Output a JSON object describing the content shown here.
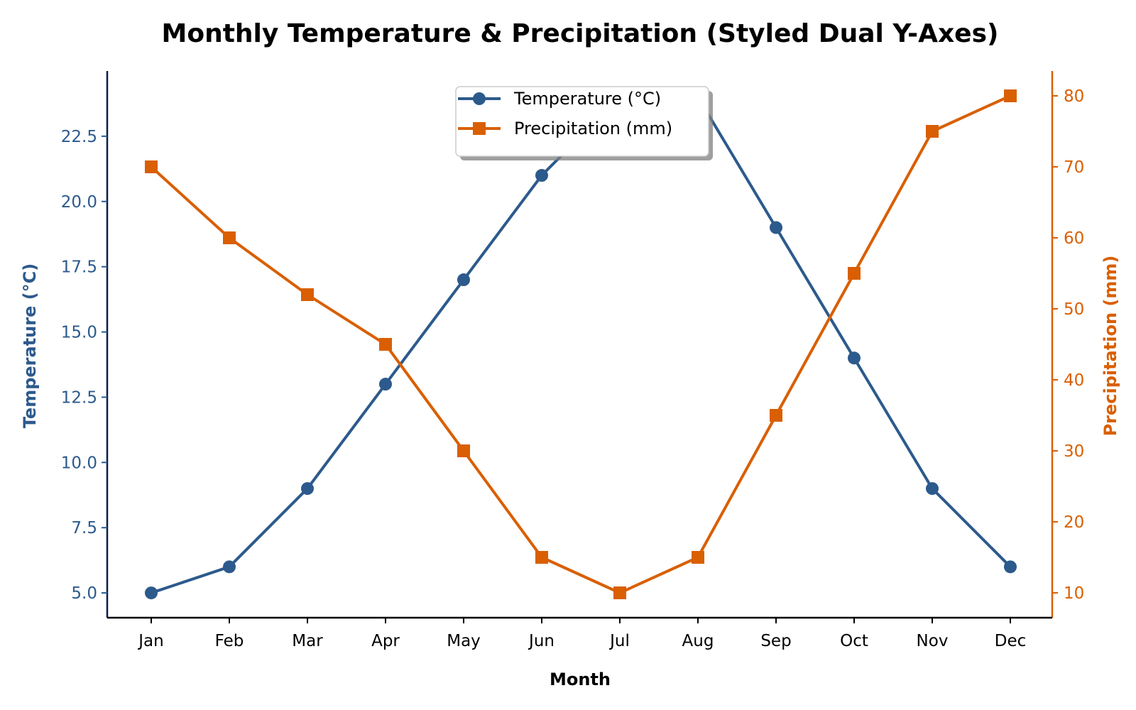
{
  "chart_data": {
    "type": "line",
    "title": "Monthly Temperature & Precipitation (Styled Dual Y-Axes)",
    "xlabel": "Month",
    "categories": [
      "Jan",
      "Feb",
      "Mar",
      "Apr",
      "May",
      "Jun",
      "Jul",
      "Aug",
      "Sep",
      "Oct",
      "Nov",
      "Dec"
    ],
    "y_left": {
      "label": "Temperature (°C)",
      "ticks": [
        "5.0",
        "7.5",
        "10.0",
        "12.5",
        "15.0",
        "17.5",
        "20.0",
        "22.5"
      ],
      "range": [
        4.05,
        25.0
      ],
      "color": "#2c5a8c"
    },
    "y_right": {
      "label": "Precipitation (mm)",
      "ticks": [
        "10",
        "20",
        "30",
        "40",
        "50",
        "60",
        "70",
        "80"
      ],
      "range": [
        6.5,
        83.5
      ],
      "color": "#d95f02"
    },
    "series": [
      {
        "name": "Temperature (°C)",
        "axis": "left",
        "marker": "circle",
        "color": "#2c5a8c",
        "values": [
          5,
          6,
          9,
          13,
          17,
          21,
          24,
          24,
          19,
          14,
          9,
          6
        ]
      },
      {
        "name": "Precipitation (mm)",
        "axis": "right",
        "marker": "square",
        "color": "#d95f02",
        "values": [
          70,
          60,
          52,
          45,
          30,
          15,
          10,
          15,
          35,
          55,
          75,
          80
        ]
      }
    ],
    "legend_position": "top-center",
    "grid": false
  }
}
